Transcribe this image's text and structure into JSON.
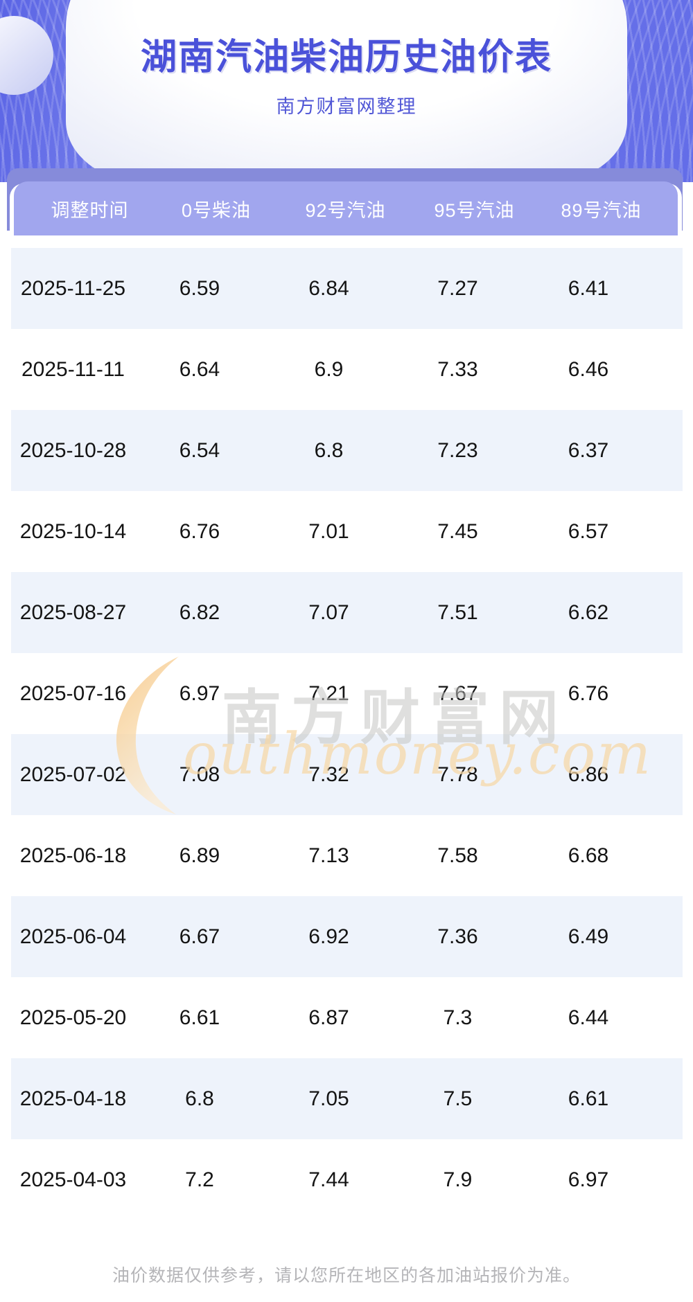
{
  "header": {
    "title": "湖南汽油柴油历史油价表",
    "subtitle": "南方财富网整理"
  },
  "table": {
    "columns": [
      "调整时间",
      "0号柴油",
      "92号汽油",
      "95号汽油",
      "89号汽油"
    ],
    "fields": [
      "date",
      "diesel0",
      "gas92",
      "gas95",
      "gas89"
    ],
    "rows": [
      {
        "date": "2025-11-25",
        "diesel0": "6.59",
        "gas92": "6.84",
        "gas95": "7.27",
        "gas89": "6.41"
      },
      {
        "date": "2025-11-11",
        "diesel0": "6.64",
        "gas92": "6.9",
        "gas95": "7.33",
        "gas89": "6.46"
      },
      {
        "date": "2025-10-28",
        "diesel0": "6.54",
        "gas92": "6.8",
        "gas95": "7.23",
        "gas89": "6.37"
      },
      {
        "date": "2025-10-14",
        "diesel0": "6.76",
        "gas92": "7.01",
        "gas95": "7.45",
        "gas89": "6.57"
      },
      {
        "date": "2025-08-27",
        "diesel0": "6.82",
        "gas92": "7.07",
        "gas95": "7.51",
        "gas89": "6.62"
      },
      {
        "date": "2025-07-16",
        "diesel0": "6.97",
        "gas92": "7.21",
        "gas95": "7.67",
        "gas89": "6.76"
      },
      {
        "date": "2025-07-02",
        "diesel0": "7.08",
        "gas92": "7.32",
        "gas95": "7.78",
        "gas89": "6.86"
      },
      {
        "date": "2025-06-18",
        "diesel0": "6.89",
        "gas92": "7.13",
        "gas95": "7.58",
        "gas89": "6.68"
      },
      {
        "date": "2025-06-04",
        "diesel0": "6.67",
        "gas92": "6.92",
        "gas95": "7.36",
        "gas89": "6.49"
      },
      {
        "date": "2025-05-20",
        "diesel0": "6.61",
        "gas92": "6.87",
        "gas95": "7.3",
        "gas89": "6.44"
      },
      {
        "date": "2025-04-18",
        "diesel0": "6.8",
        "gas92": "7.05",
        "gas95": "7.5",
        "gas89": "6.61"
      },
      {
        "date": "2025-04-03",
        "diesel0": "7.2",
        "gas92": "7.44",
        "gas95": "7.9",
        "gas89": "6.97"
      }
    ]
  },
  "watermark": {
    "cn": "南方财富网",
    "en": "outhmoney.com"
  },
  "footer": {
    "note": "油价数据仅供参考，请以您所在地区的各加油站报价为准。"
  },
  "colors": {
    "banner_purple": "#6b74e9",
    "header_band": "#a1a6ee",
    "header_band_backdrop": "#868bda",
    "row_alt_blue": "#eef3fb",
    "title_text": "#4a51d9",
    "subtitle_text": "#5157d6",
    "watermark_orange": "#f6d8a8",
    "watermark_gray": "#c5c5c2",
    "footer_text": "#b5b5b8"
  }
}
